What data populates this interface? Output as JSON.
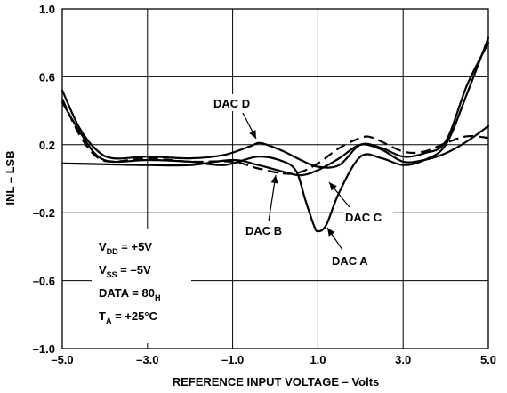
{
  "chart_data": {
    "type": "line",
    "xlabel": "REFERENCE INPUT VOLTAGE – Volts",
    "ylabel": "INL – LSB",
    "xlim": [
      -5.0,
      5.0
    ],
    "ylim": [
      -1.0,
      1.0
    ],
    "x_ticks": [
      -5.0,
      -3.0,
      -1.0,
      1.0,
      3.0,
      5.0
    ],
    "x_tick_labels": [
      "–5.0",
      "–3.0",
      "–1.0",
      "1.0",
      "3.0",
      "5.0"
    ],
    "y_ticks": [
      -1.0,
      -0.6,
      -0.2,
      0.2,
      0.6,
      1.0
    ],
    "y_tick_labels": [
      "–1.0",
      "–0.6",
      "–0.2",
      "0.2",
      "0.6",
      "1.0"
    ],
    "grid": true,
    "series": [
      {
        "name": "DAC A",
        "style": "solid",
        "x": [
          -5.0,
          -4.6,
          -4.2,
          -3.8,
          -3.0,
          -2.0,
          -1.2,
          -0.4,
          0.2,
          0.5,
          0.7,
          0.9,
          1.0,
          1.2,
          1.5,
          2.0,
          2.5,
          3.0,
          3.5,
          4.0,
          4.5,
          5.0
        ],
        "y": [
          0.45,
          0.28,
          0.14,
          0.1,
          0.11,
          0.1,
          0.08,
          0.13,
          0.1,
          0.04,
          -0.12,
          -0.27,
          -0.31,
          -0.27,
          -0.08,
          0.13,
          0.12,
          0.08,
          0.11,
          0.2,
          0.5,
          0.83
        ]
      },
      {
        "name": "DAC B",
        "style": "dashed",
        "x": [
          -5.0,
          -4.6,
          -4.2,
          -3.8,
          -3.0,
          -2.0,
          -1.0,
          -0.4,
          0.2,
          0.6,
          1.0,
          1.5,
          2.0,
          2.3,
          3.0,
          3.5,
          4.0,
          4.5,
          5.0
        ],
        "y": [
          0.47,
          0.26,
          0.13,
          0.1,
          0.12,
          0.1,
          0.1,
          0.06,
          0.03,
          0.04,
          0.09,
          0.18,
          0.24,
          0.24,
          0.16,
          0.16,
          0.21,
          0.25,
          0.24
        ]
      },
      {
        "name": "DAC C",
        "style": "solid",
        "x": [
          -5.0,
          -4.0,
          -3.0,
          -2.0,
          -1.0,
          -0.4,
          0.2,
          0.6,
          1.0,
          1.5,
          2.0,
          2.5,
          3.0,
          3.5,
          4.0,
          4.5,
          5.0
        ],
        "y": [
          0.09,
          0.085,
          0.08,
          0.08,
          0.11,
          0.08,
          0.04,
          0.02,
          0.05,
          0.12,
          0.2,
          0.17,
          0.1,
          0.11,
          0.15,
          0.22,
          0.31
        ]
      },
      {
        "name": "DAC D",
        "style": "solid",
        "x": [
          -5.0,
          -4.6,
          -4.2,
          -3.8,
          -3.0,
          -2.0,
          -1.2,
          -0.6,
          -0.4,
          -0.2,
          0.2,
          0.6,
          1.0,
          1.5,
          2.0,
          2.5,
          3.0,
          3.5,
          4.0,
          4.5,
          5.0
        ],
        "y": [
          0.52,
          0.3,
          0.17,
          0.12,
          0.13,
          0.12,
          0.14,
          0.19,
          0.21,
          0.2,
          0.16,
          0.11,
          0.07,
          0.08,
          0.2,
          0.18,
          0.13,
          0.15,
          0.22,
          0.55,
          0.8
        ]
      }
    ],
    "annotations": [
      {
        "id": "dac-d",
        "text": "DAC D"
      },
      {
        "id": "dac-b",
        "text": "DAC B"
      },
      {
        "id": "dac-c",
        "text": "DAC C"
      },
      {
        "id": "dac-a",
        "text": "DAC A"
      }
    ],
    "conditions": [
      {
        "base": "V",
        "sub": "DD",
        "rest": " = +5V"
      },
      {
        "base": "V",
        "sub": "SS",
        "rest": " = –5V"
      },
      {
        "base": "DATA = 80",
        "sub": "H",
        "rest": ""
      },
      {
        "base": "T",
        "sub": "A",
        "rest": " = +25°C"
      }
    ]
  }
}
